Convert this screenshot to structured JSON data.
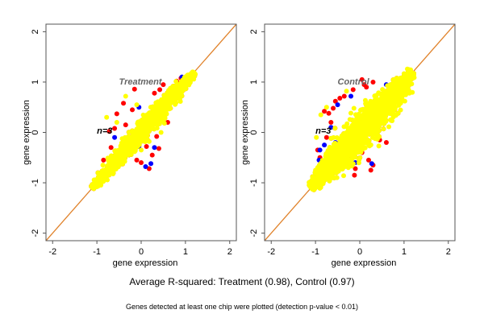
{
  "chart_data": [
    {
      "type": "scatter",
      "title": "Treatment",
      "annotation": "n=3",
      "xlabel": "gene expression",
      "ylabel": "gene expression",
      "xlim": [
        -2.15,
        2.15
      ],
      "ylim": [
        -2.15,
        2.15
      ],
      "xticks": [
        "-2",
        "-1",
        "0",
        "1",
        "2"
      ],
      "yticks": [
        "-2",
        "-1",
        "0",
        "1",
        "2"
      ],
      "grid": false,
      "reference_line": {
        "slope": 1,
        "intercept": 0,
        "color": "#e0822a"
      },
      "cloud": {
        "range": [
          -1.1,
          1.2
        ],
        "spread": 0.12,
        "color": "#ffff00",
        "count": 1400
      },
      "series": [
        {
          "name": "outliers-red",
          "color": "#ff0000",
          "points": [
            [
              -0.55,
              0.37
            ],
            [
              -0.72,
              0.02
            ],
            [
              -0.6,
              0.08
            ],
            [
              -0.68,
              -0.3
            ],
            [
              -0.4,
              0.58
            ],
            [
              -0.2,
              0.45
            ],
            [
              -0.15,
              0.86
            ],
            [
              0.42,
              0.85
            ],
            [
              0.5,
              0.95
            ],
            [
              0.3,
              0.78
            ],
            [
              0.55,
              0.6
            ],
            [
              0.62,
              0.55
            ],
            [
              0.8,
              1.02
            ],
            [
              0.9,
              1.08
            ],
            [
              0.0,
              -0.6
            ],
            [
              0.35,
              -0.08
            ],
            [
              0.4,
              -0.32
            ],
            [
              0.25,
              -0.45
            ],
            [
              0.18,
              -0.72
            ],
            [
              -0.1,
              -0.55
            ],
            [
              0.6,
              0.2
            ],
            [
              -0.85,
              -0.55
            ],
            [
              -0.35,
              0.15
            ],
            [
              0.12,
              -0.28
            ],
            [
              -0.28,
              -0.45
            ]
          ]
        },
        {
          "name": "outliers-blue",
          "color": "#0000ff",
          "points": [
            [
              -0.05,
              0.5
            ],
            [
              0.55,
              0.45
            ],
            [
              0.3,
              -0.3
            ],
            [
              0.22,
              -0.62
            ],
            [
              0.1,
              -0.68
            ],
            [
              -0.05,
              -0.28
            ],
            [
              -1.1,
              -1.08
            ],
            [
              0.92,
              1.1
            ],
            [
              -0.6,
              -0.1
            ],
            [
              0.05,
              -0.15
            ]
          ]
        },
        {
          "name": "outliers-yellow",
          "color": "#ffff00",
          "points": [
            [
              -0.78,
              0.3
            ],
            [
              -0.35,
              0.72
            ],
            [
              -0.55,
              0.2
            ],
            [
              0.18,
              -0.18
            ],
            [
              0.0,
              -0.35
            ],
            [
              -0.1,
              0.55
            ]
          ]
        }
      ]
    },
    {
      "type": "scatter",
      "title": "Control",
      "annotation": "n=3",
      "xlabel": "gene expression",
      "ylabel": "gene expression",
      "xlim": [
        -2.15,
        2.15
      ],
      "ylim": [
        -2.15,
        2.15
      ],
      "xticks": [
        "-2",
        "-1",
        "0",
        "1",
        "2"
      ],
      "yticks": [
        "-2",
        "-1",
        "0",
        "1",
        "2"
      ],
      "grid": false,
      "reference_line": {
        "slope": 1,
        "intercept": 0,
        "color": "#e0822a"
      },
      "cloud": {
        "range": [
          -1.1,
          1.2
        ],
        "spread": 0.22,
        "color": "#ffff00",
        "count": 1700
      },
      "series": [
        {
          "name": "outliers-red",
          "color": "#ff0000",
          "points": [
            [
              -0.45,
              0.68
            ],
            [
              -0.55,
              0.62
            ],
            [
              -0.35,
              0.72
            ],
            [
              -0.15,
              0.85
            ],
            [
              0.05,
              1.05
            ],
            [
              0.1,
              0.95
            ],
            [
              -0.8,
              0.42
            ],
            [
              -0.7,
              0.38
            ],
            [
              -0.95,
              -0.35
            ],
            [
              -0.9,
              -0.5
            ],
            [
              -0.6,
              0.48
            ],
            [
              0.15,
              0.9
            ],
            [
              0.3,
              1.0
            ],
            [
              0.5,
              0.5
            ],
            [
              0.05,
              -0.4
            ],
            [
              0.2,
              -0.55
            ],
            [
              0.3,
              -0.65
            ],
            [
              0.25,
              -0.75
            ],
            [
              -0.1,
              -0.72
            ],
            [
              -0.12,
              -0.85
            ],
            [
              0.6,
              -0.2
            ],
            [
              0.45,
              -0.15
            ],
            [
              -0.25,
              -0.62
            ],
            [
              -0.45,
              -0.5
            ],
            [
              -0.65,
              0.2
            ],
            [
              -0.75,
              -0.1
            ]
          ]
        },
        {
          "name": "outliers-blue",
          "color": "#0000ff",
          "points": [
            [
              -0.2,
              0.72
            ],
            [
              -0.5,
              0.55
            ],
            [
              -0.65,
              0.1
            ],
            [
              -0.8,
              -0.25
            ],
            [
              -0.92,
              -0.55
            ],
            [
              -0.1,
              -0.6
            ],
            [
              0.27,
              -0.62
            ],
            [
              -1.05,
              -1.05
            ],
            [
              -0.9,
              -0.35
            ],
            [
              0.6,
              0.95
            ],
            [
              -0.55,
              -0.2
            ]
          ]
        },
        {
          "name": "outliers-yellow",
          "color": "#ffff00",
          "points": [
            [
              -0.98,
              -0.1
            ],
            [
              -0.88,
              0.35
            ],
            [
              -0.75,
              0.5
            ],
            [
              -0.3,
              0.82
            ],
            [
              0.4,
              0.3
            ],
            [
              0.75,
              0.35
            ],
            [
              -1.0,
              -0.75
            ]
          ]
        }
      ]
    }
  ],
  "footer": {
    "main": "Average R-squared: Treatment (0.98), Control (0.97)",
    "sub": "Genes detected at least one chip were plotted (detection p-value < 0.01)"
  }
}
